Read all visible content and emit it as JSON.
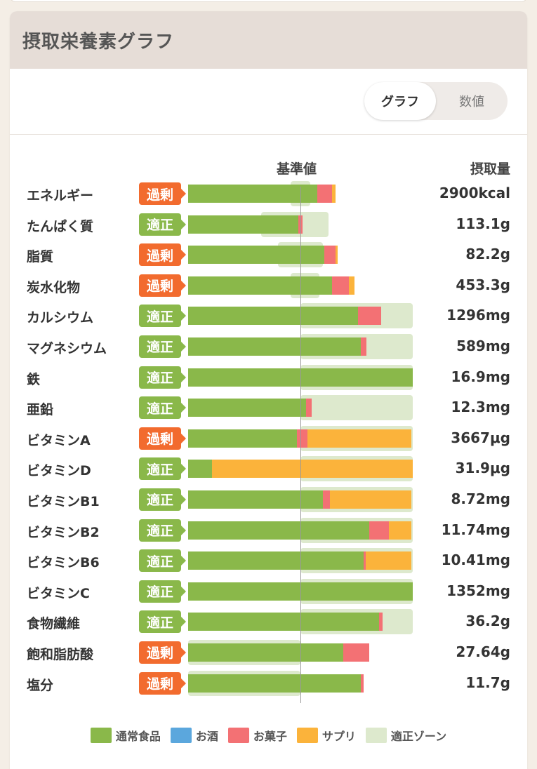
{
  "card": {
    "title": "摂取栄養素グラフ"
  },
  "toggle": {
    "graph_label": "グラフ",
    "number_label": "数値",
    "active": "graph"
  },
  "columns": {
    "reference_label": "基準値",
    "intake_label": "摂取量"
  },
  "colors": {
    "food": "#8ab84a",
    "alcohol": "#5ba7dd",
    "snack": "#f37174",
    "supplement": "#fbb33b",
    "zone": "#dde9cd",
    "over_badge": "#f26b2e",
    "ok_badge": "#8ab84a"
  },
  "badges": {
    "over": "過剰",
    "ok": "適正"
  },
  "chart_data": {
    "type": "bar",
    "stacked": true,
    "orientation": "horizontal",
    "reference_value_pct": 100,
    "max_pct": 200,
    "series": [
      {
        "name": "通常食品",
        "color": "#8ab84a"
      },
      {
        "name": "お酒",
        "color": "#5ba7dd"
      },
      {
        "name": "お菓子",
        "color": "#f37174"
      },
      {
        "name": "サプリ",
        "color": "#fbb33b"
      },
      {
        "name": "適正ゾーン",
        "color": "#dde9cd"
      }
    ],
    "rows": [
      {
        "name": "エネルギー",
        "status": "over",
        "value": "2900kcal",
        "zone": [
          91,
          109
        ],
        "food": 115,
        "alcohol": 0,
        "snack": 13,
        "supplement": 3
      },
      {
        "name": "たんぱく質",
        "status": "ok",
        "value": "113.1g",
        "zone": [
          65,
          125
        ],
        "food": 98,
        "alcohol": 0,
        "snack": 4,
        "supplement": 0
      },
      {
        "name": "脂質",
        "status": "over",
        "value": "82.2g",
        "zone": [
          80,
          120
        ],
        "food": 121,
        "alcohol": 0,
        "snack": 10,
        "supplement": 2
      },
      {
        "name": "炭水化物",
        "status": "over",
        "value": "453.3g",
        "zone": [
          91,
          117
        ],
        "food": 128,
        "alcohol": 0,
        "snack": 15,
        "supplement": 5
      },
      {
        "name": "カルシウム",
        "status": "ok",
        "value": "1296mg",
        "zone": [
          100,
          200
        ],
        "food": 151,
        "alcohol": 0,
        "snack": 21,
        "supplement": 0
      },
      {
        "name": "マグネシウム",
        "status": "ok",
        "value": "589mg",
        "zone": [
          100,
          200
        ],
        "food": 154,
        "alcohol": 0,
        "snack": 5,
        "supplement": 0
      },
      {
        "name": "鉄",
        "status": "ok",
        "value": "16.9mg",
        "zone": [
          100,
          200
        ],
        "food": 200,
        "alcohol": 0,
        "snack": 0,
        "supplement": 0
      },
      {
        "name": "亜鉛",
        "status": "ok",
        "value": "12.3mg",
        "zone": [
          100,
          200
        ],
        "food": 105,
        "alcohol": 0,
        "snack": 5,
        "supplement": 0
      },
      {
        "name": "ビタミンA",
        "status": "over",
        "value": "3667μg",
        "zone": [
          100,
          200
        ],
        "food": 97,
        "alcohol": 0,
        "snack": 9,
        "supplement": 93
      },
      {
        "name": "ビタミンD",
        "status": "ok",
        "value": "31.9μg",
        "zone": [
          100,
          200
        ],
        "food": 21,
        "alcohol": 0,
        "snack": 0,
        "supplement": 179
      },
      {
        "name": "ビタミンB1",
        "status": "ok",
        "value": "8.72mg",
        "zone": [
          100,
          200
        ],
        "food": 120,
        "alcohol": 0,
        "snack": 6,
        "supplement": 73
      },
      {
        "name": "ビタミンB2",
        "status": "ok",
        "value": "11.74mg",
        "zone": [
          100,
          200
        ],
        "food": 161,
        "alcohol": 0,
        "snack": 18,
        "supplement": 20
      },
      {
        "name": "ビタミンB6",
        "status": "ok",
        "value": "10.41mg",
        "zone": [
          100,
          200
        ],
        "food": 156,
        "alcohol": 0,
        "snack": 2,
        "supplement": 41
      },
      {
        "name": "ビタミンC",
        "status": "ok",
        "value": "1352mg",
        "zone": [
          100,
          200
        ],
        "food": 200,
        "alcohol": 0,
        "snack": 0,
        "supplement": 0
      },
      {
        "name": "食物繊維",
        "status": "ok",
        "value": "36.2g",
        "zone": [
          100,
          200
        ],
        "food": 170,
        "alcohol": 0,
        "snack": 3,
        "supplement": 0
      },
      {
        "name": "飽和脂肪酸",
        "status": "over",
        "value": "27.64g",
        "zone": [
          0,
          100
        ],
        "food": 138,
        "alcohol": 0,
        "snack": 23,
        "supplement": 0
      },
      {
        "name": "塩分",
        "status": "over",
        "value": "11.7g",
        "zone": [
          0,
          100
        ],
        "food": 154,
        "alcohol": 0,
        "snack": 2,
        "supplement": 0
      }
    ]
  }
}
